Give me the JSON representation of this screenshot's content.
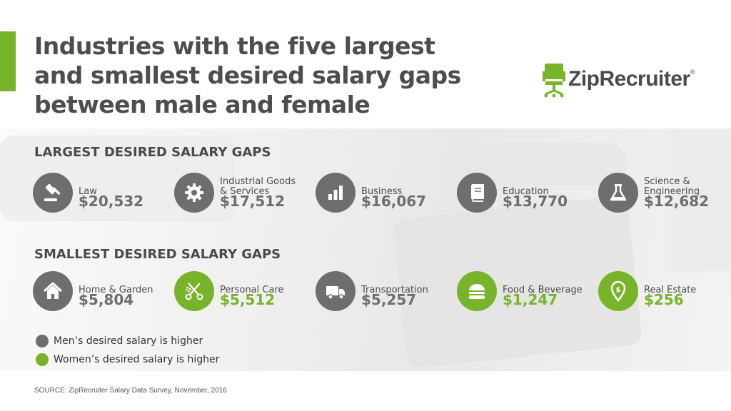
{
  "title": {
    "line1": "Industries with the five largest",
    "line2": "and smallest desired salary gaps",
    "line3": "between male and female"
  },
  "logo": {
    "text": "ZipRecruiter",
    "reg": "®"
  },
  "colors": {
    "men": "#6e6e70",
    "women": "#78b42a",
    "accent": "#78b42a",
    "text": "#4d4d4d"
  },
  "chart_data": {
    "type": "table",
    "groups": [
      {
        "heading": "LARGEST DESIRED SALARY GAPS",
        "items": [
          {
            "industry": "Law",
            "gap": 20532,
            "display": "$20,532",
            "higher": "men",
            "icon": "gavel-icon"
          },
          {
            "industry": "Industrial Goods\n& Services",
            "gap": 17512,
            "display": "$17,512",
            "higher": "men",
            "icon": "gear-icon"
          },
          {
            "industry": "Business",
            "gap": 16067,
            "display": "$16,067",
            "higher": "men",
            "icon": "bar-chart-icon"
          },
          {
            "industry": "Education",
            "gap": 13770,
            "display": "$13,770",
            "higher": "men",
            "icon": "book-icon"
          },
          {
            "industry": "Science &\nEngineering",
            "gap": 12682,
            "display": "$12,682",
            "higher": "men",
            "icon": "flask-icon"
          }
        ]
      },
      {
        "heading": "SMALLEST DESIRED SALARY GAPS",
        "items": [
          {
            "industry": "Home & Garden",
            "gap": 5804,
            "display": "$5,804",
            "higher": "men",
            "icon": "house-icon"
          },
          {
            "industry": "Personal Care",
            "gap": 5512,
            "display": "$5,512",
            "higher": "women",
            "icon": "scissors-comb-icon"
          },
          {
            "industry": "Transportation",
            "gap": 5257,
            "display": "$5,257",
            "higher": "men",
            "icon": "truck-icon"
          },
          {
            "industry": "Food & Beverage",
            "gap": 1247,
            "display": "$1,247",
            "higher": "women",
            "icon": "burger-icon"
          },
          {
            "industry": "Real Estate",
            "gap": 256,
            "display": "$256",
            "higher": "women",
            "icon": "map-pin-icon"
          }
        ]
      }
    ],
    "legend": [
      {
        "key": "men",
        "label": "Men’s desired salary is higher"
      },
      {
        "key": "women",
        "label": "Women’s desired salary is higher"
      }
    ]
  },
  "source": "SOURCE: ZipRecruiter Salary Data Survey, November, 2016"
}
